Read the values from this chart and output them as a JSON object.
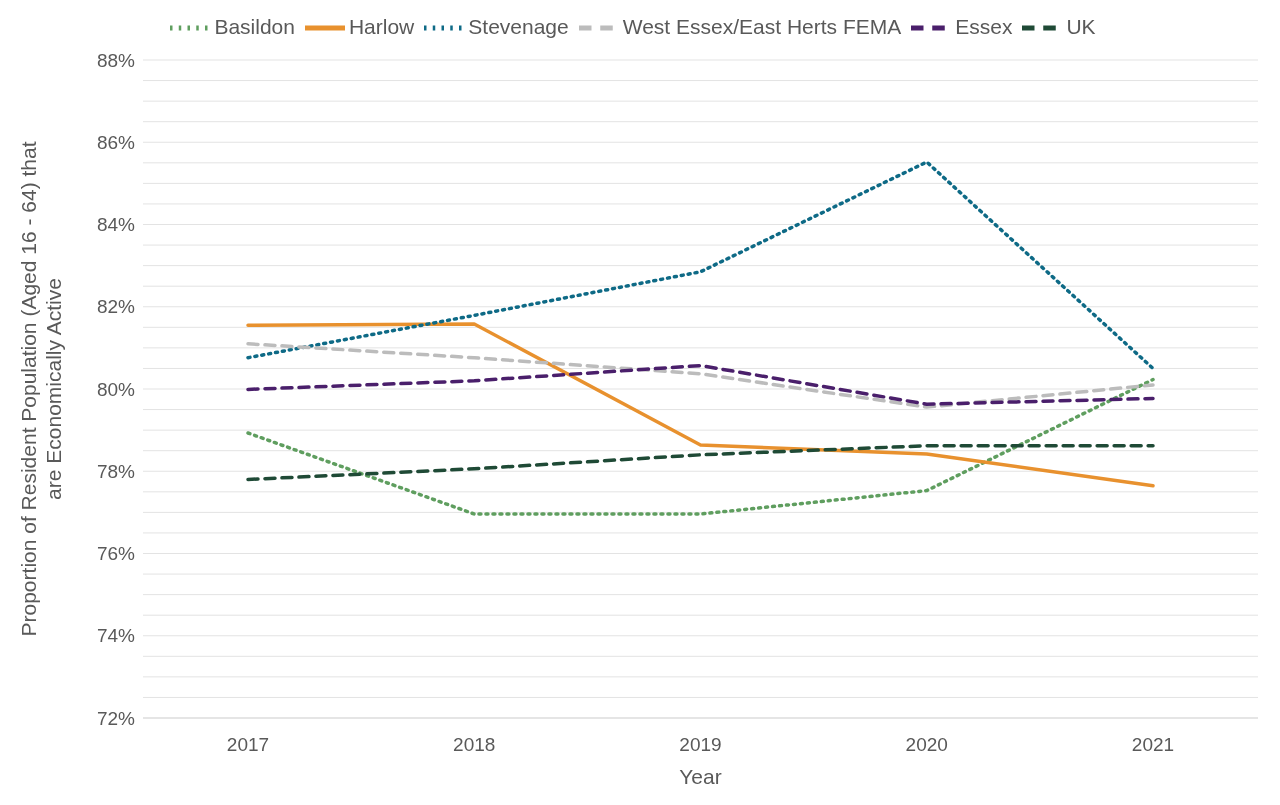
{
  "chart_data": {
    "type": "line",
    "xlabel": "Year",
    "ylabel": "Proportion of Resident Population (Aged 16 - 64) that are Economically Active",
    "categories": [
      "2017",
      "2018",
      "2019",
      "2020",
      "2021"
    ],
    "series": [
      {
        "name": "Basildon",
        "color": "#5f9e5f",
        "line_style": "dotted",
        "values": [
          78.93,
          76.96,
          76.96,
          77.53,
          80.23
        ]
      },
      {
        "name": "Harlow",
        "color": "#e8912e",
        "line_style": "solid",
        "values": [
          81.55,
          81.58,
          78.64,
          78.42,
          77.65
        ]
      },
      {
        "name": "Stevenage",
        "color": "#0e6a86",
        "line_style": "dotted",
        "values": [
          80.76,
          81.79,
          82.85,
          85.52,
          80.5
        ]
      },
      {
        "name": "West Essex/East Herts FEMA",
        "color": "#bcbcbc",
        "line_style": "dashed",
        "values": [
          81.1,
          80.76,
          80.37,
          79.56,
          80.1
        ]
      },
      {
        "name": "Essex",
        "color": "#4a1f6b",
        "line_style": "dashed",
        "values": [
          79.99,
          80.2,
          80.57,
          79.63,
          79.77
        ]
      },
      {
        "name": "UK",
        "color": "#1f4a36",
        "line_style": "dashed",
        "values": [
          77.8,
          78.06,
          78.4,
          78.62,
          78.62
        ]
      }
    ],
    "ylim": [
      72,
      88
    ],
    "yticks": [
      {
        "value": 72,
        "label": "72%"
      },
      {
        "value": 72.5,
        "label": null
      },
      {
        "value": 73,
        "label": null
      },
      {
        "value": 73.5,
        "label": null
      },
      {
        "value": 74,
        "label": "74%"
      },
      {
        "value": 74.5,
        "label": null
      },
      {
        "value": 75,
        "label": null
      },
      {
        "value": 75.5,
        "label": null
      },
      {
        "value": 76,
        "label": "76%"
      },
      {
        "value": 76.5,
        "label": null
      },
      {
        "value": 77,
        "label": null
      },
      {
        "value": 77.5,
        "label": null
      },
      {
        "value": 78,
        "label": "78%"
      },
      {
        "value": 78.5,
        "label": null
      },
      {
        "value": 79,
        "label": null
      },
      {
        "value": 79.5,
        "label": null
      },
      {
        "value": 80,
        "label": "80%"
      },
      {
        "value": 80.5,
        "label": null
      },
      {
        "value": 81,
        "label": null
      },
      {
        "value": 81.5,
        "label": null
      },
      {
        "value": 82,
        "label": "82%"
      },
      {
        "value": 82.5,
        "label": null
      },
      {
        "value": 83,
        "label": null
      },
      {
        "value": 83.5,
        "label": null
      },
      {
        "value": 84,
        "label": "84%"
      },
      {
        "value": 84.5,
        "label": null
      },
      {
        "value": 85,
        "label": null
      },
      {
        "value": 85.5,
        "label": null
      },
      {
        "value": 86,
        "label": "86%"
      },
      {
        "value": 86.5,
        "label": null
      },
      {
        "value": 87,
        "label": null
      },
      {
        "value": 87.5,
        "label": null
      },
      {
        "value": 88,
        "label": "88%"
      }
    ],
    "grid": "y",
    "legend": "top",
    "marker": "none"
  }
}
